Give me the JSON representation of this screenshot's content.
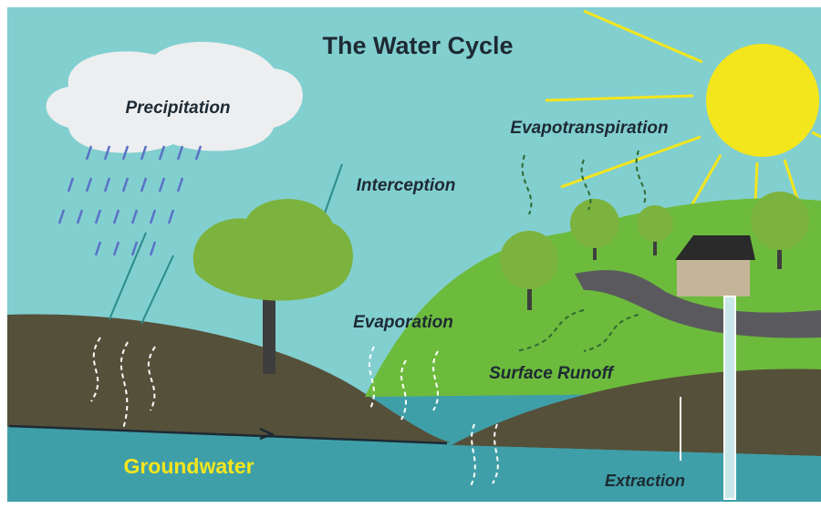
{
  "title": "The Water Cycle",
  "labels": [
    "Precipitation",
    "Interception",
    "Evapotranspiration",
    "Evaporation",
    "Surface Runoff",
    "Groundwater",
    "Extraction"
  ]
}
